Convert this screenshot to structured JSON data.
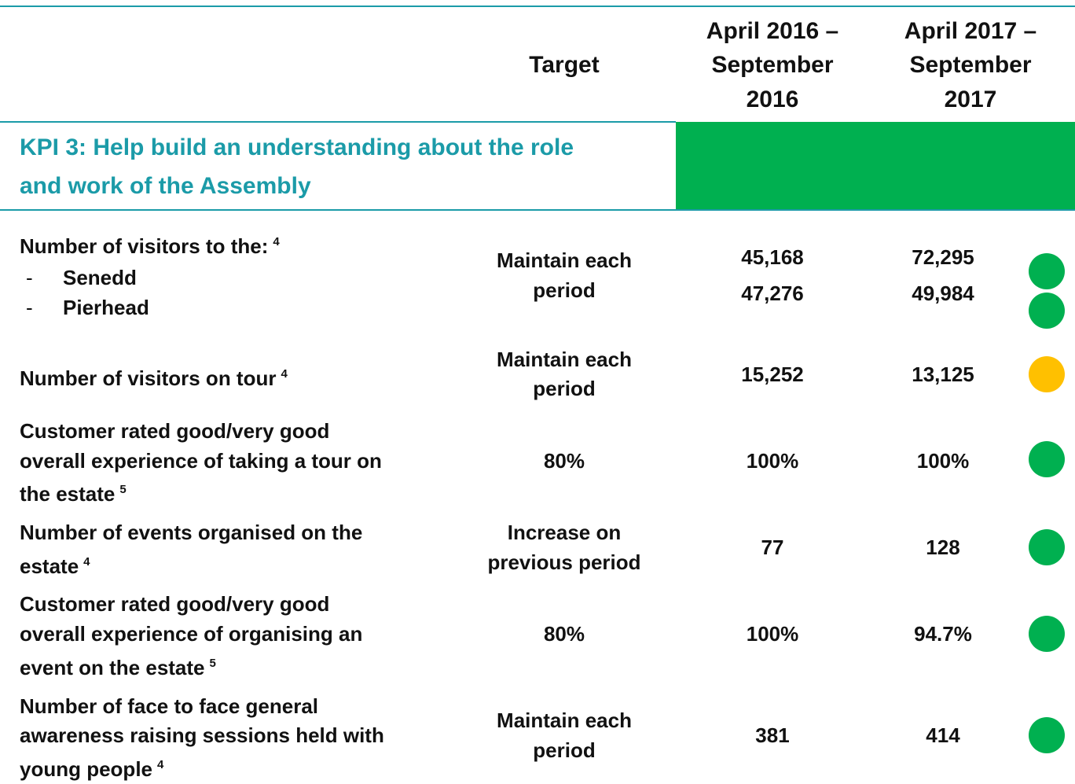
{
  "header": {
    "target": "Target",
    "period_1": [
      "April 2016 –",
      "September",
      "2016"
    ],
    "period_2": [
      "April 2017 –",
      "September",
      "2017"
    ]
  },
  "section": {
    "title": [
      "KPI 3: Help build an understanding about the role",
      "and work of the Assembly"
    ]
  },
  "rows": [
    {
      "label": [
        "Number of visitors to the:"
      ],
      "footnote": "4",
      "items": [
        "Senedd",
        "Pierhead"
      ],
      "target": [
        "Maintain each",
        "period"
      ],
      "period_1": [
        "45,168",
        "47,276"
      ],
      "period_2": [
        "72,295",
        "49,984"
      ],
      "status": [
        "#00b050",
        "#00b050"
      ]
    },
    {
      "label": [
        "Number of visitors on tour"
      ],
      "footnote": "4",
      "target": [
        "Maintain each",
        "period"
      ],
      "period_1": [
        "15,252"
      ],
      "period_2": [
        "13,125"
      ],
      "status": [
        "#ffc000"
      ]
    },
    {
      "label": [
        "Customer rated good/very good",
        "overall experience of taking a tour on",
        "the estate"
      ],
      "footnote": "5",
      "target": [
        "80%"
      ],
      "period_1": [
        "100%"
      ],
      "period_2": [
        "100%"
      ],
      "status": [
        "#00b050"
      ]
    },
    {
      "label": [
        "Number of events organised on the",
        "estate"
      ],
      "footnote": "4",
      "target": [
        "Increase on",
        "previous period"
      ],
      "period_1": [
        "77"
      ],
      "period_2": [
        "128"
      ],
      "status": [
        "#00b050"
      ]
    },
    {
      "label": [
        "Customer rated good/very good",
        "overall experience of organising an",
        "event on the estate"
      ],
      "footnote": "5",
      "target": [
        "80%"
      ],
      "period_1": [
        "100%"
      ],
      "period_2": [
        "94.7%"
      ],
      "status": [
        "#00b050"
      ]
    },
    {
      "label": [
        "Number of face to face general",
        "awareness raising sessions held with",
        "young people"
      ],
      "footnote": "4",
      "target": [
        "Maintain each",
        "period"
      ],
      "period_1": [
        "381"
      ],
      "period_2": [
        "414"
      ],
      "status": [
        "#00b050"
      ]
    }
  ]
}
